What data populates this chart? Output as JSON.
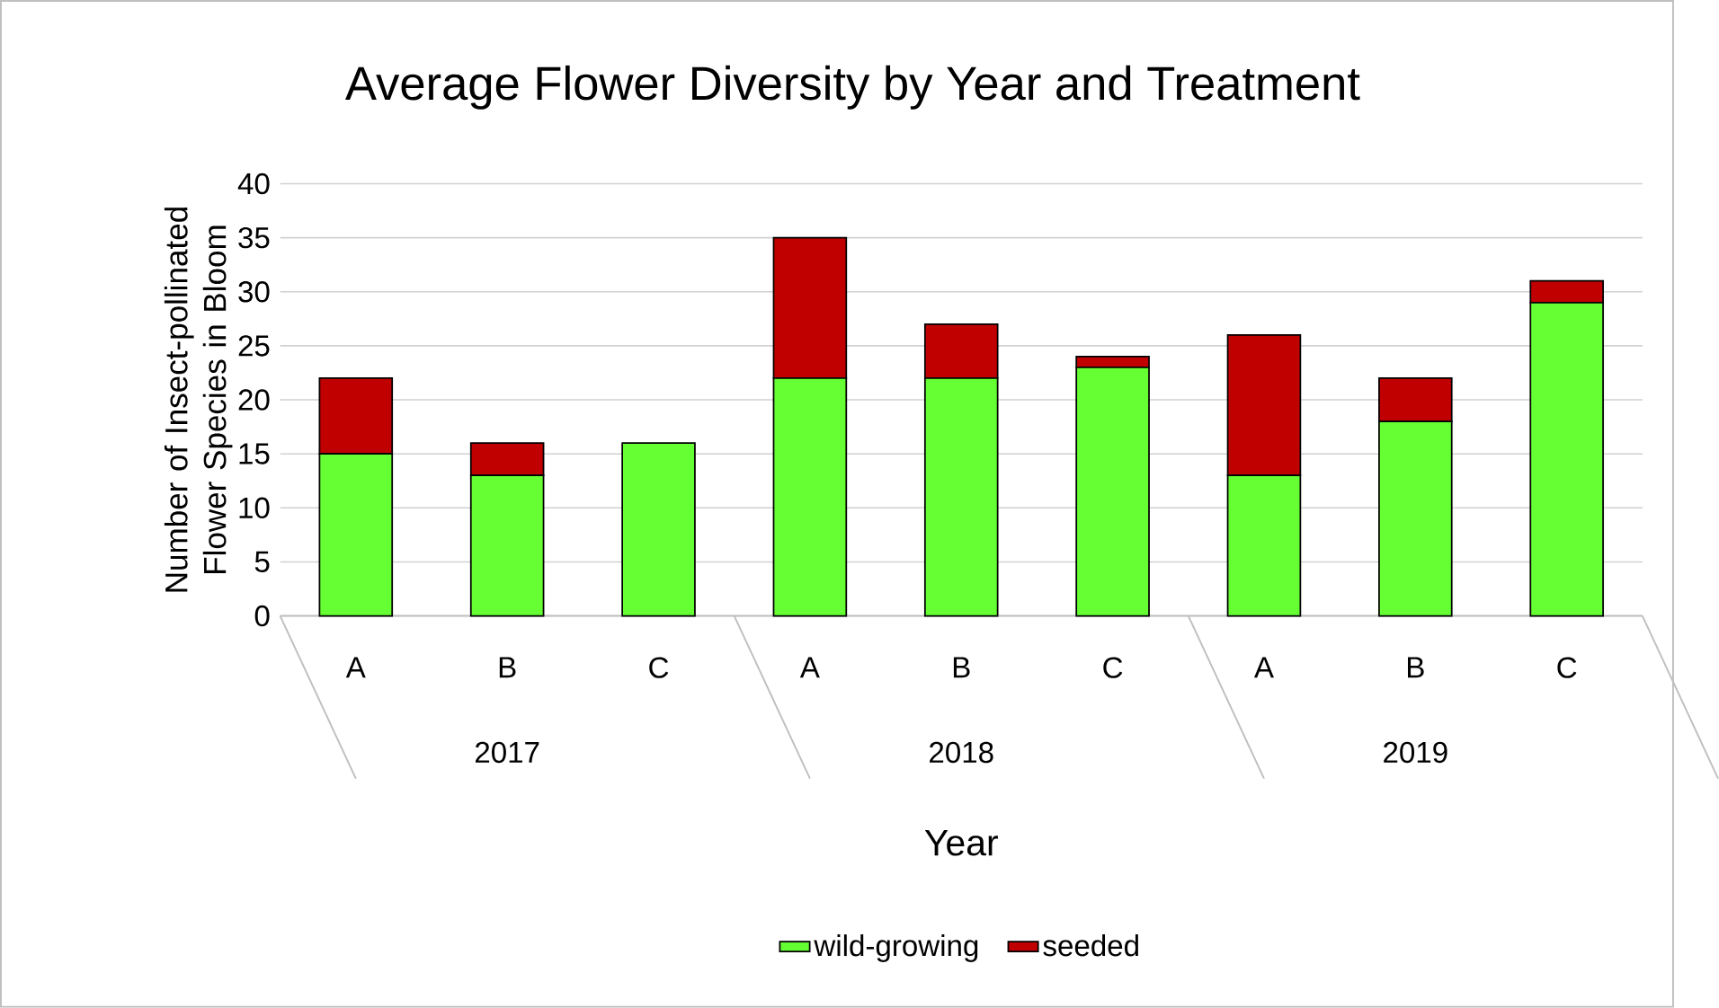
{
  "chart_data": {
    "type": "bar",
    "stacked": true,
    "title": "Average Flower Diversity by Year and Treatment",
    "xlabel": "Year",
    "ylabel": "Number  of Insect-pollinated Flower Species in Bloom",
    "categories": [
      "A",
      "B",
      "C",
      "A",
      "B",
      "C",
      "A",
      "B",
      "C"
    ],
    "annotations": [
      "2017",
      "2018",
      "2019"
    ],
    "series": [
      {
        "name": "wild-growing",
        "color": "#66ff33",
        "values": [
          15,
          13,
          16,
          22,
          22,
          23,
          13,
          18,
          29
        ]
      },
      {
        "name": "seeded",
        "color": "#c00000",
        "values": [
          7,
          3,
          0,
          13,
          5,
          1,
          13,
          4,
          2
        ]
      }
    ],
    "ylim": [
      0,
      40
    ],
    "yticks": [
      0,
      5,
      10,
      15,
      20,
      25,
      30,
      35,
      40
    ],
    "grid": "y",
    "legend": "bottom"
  }
}
